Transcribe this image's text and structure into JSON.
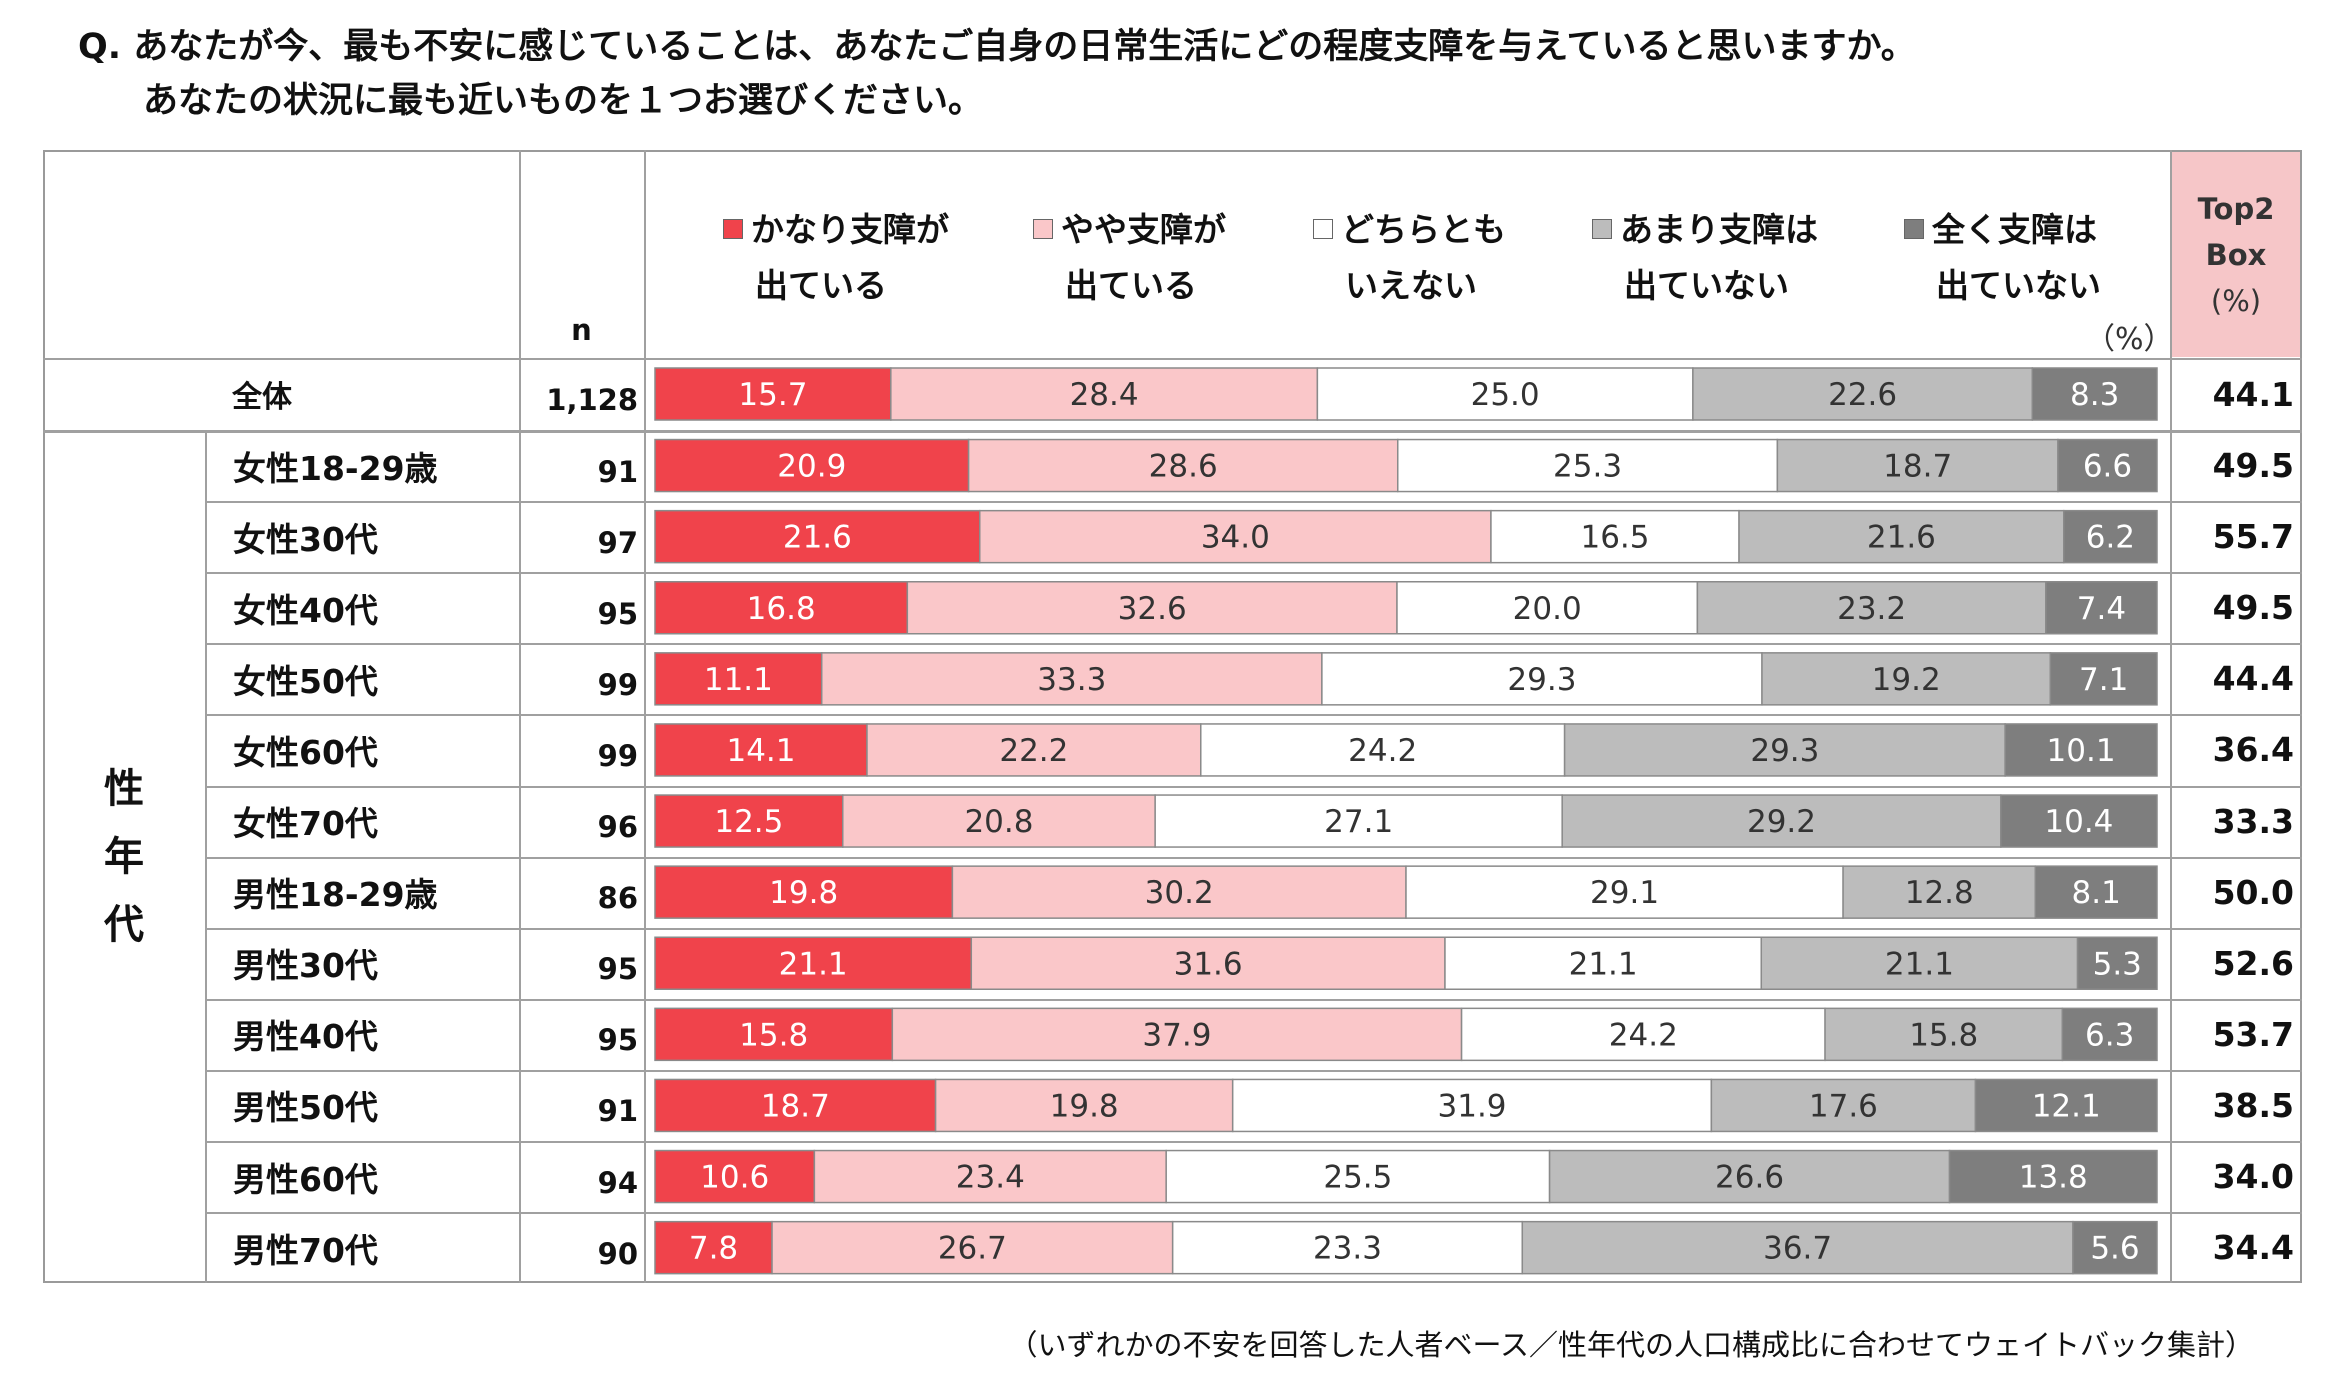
{
  "title": {
    "line1": "Q. あなたが今、最も不安に感じていることは、あなたご自身の日常生活にどの程度支障を与えていると思いますか。",
    "line2": "あなたの状況に最も近いものを１つお選びください。"
  },
  "header": {
    "n_label": "n",
    "top2_line1": "Top2",
    "top2_line2": "Box",
    "top2_line3": "(%)",
    "pct_unit": "（%）",
    "group_label": [
      "性",
      "年",
      "代"
    ]
  },
  "colors": {
    "c1": "#f0434b",
    "c2": "#fac7c9",
    "c3": "#ffffff",
    "c4": "#bcbcbc",
    "c5": "#7e7e7e",
    "top2_bg": "#f6c6c8",
    "grid": "#a0a0a0"
  },
  "footnote": "（いずれかの不安を回答した人者ベース／性年代の人口構成比に合わせてウェイトバック集計）",
  "chart_data": {
    "type": "bar",
    "orientation": "horizontal-stacked-100",
    "unit": "%",
    "series": [
      {
        "name": "かなり支障が出ている",
        "line1": "かなり支障が",
        "line2": "出ている"
      },
      {
        "name": "やや支障が出ている",
        "line1": "やや支障が",
        "line2": "出ている"
      },
      {
        "name": "どちらともいえない",
        "line1": "どちらとも",
        "line2": "いえない"
      },
      {
        "name": "あまり支障は出ていない",
        "line1": "あまり支障は",
        "line2": "出ていない"
      },
      {
        "name": "全く支障は出ていない",
        "line1": "全く支障は",
        "line2": "出ていない"
      }
    ],
    "rows": [
      {
        "label": "全体",
        "n": "1,128",
        "values": [
          "15.7",
          "28.4",
          "25.0",
          "22.6",
          "8.3"
        ],
        "top2": "44.1"
      },
      {
        "label": "女性18-29歳",
        "n": "91",
        "values": [
          "20.9",
          "28.6",
          "25.3",
          "18.7",
          "6.6"
        ],
        "top2": "49.5"
      },
      {
        "label": "女性30代",
        "n": "97",
        "values": [
          "21.6",
          "34.0",
          "16.5",
          "21.6",
          "6.2"
        ],
        "top2": "55.7"
      },
      {
        "label": "女性40代",
        "n": "95",
        "values": [
          "16.8",
          "32.6",
          "20.0",
          "23.2",
          "7.4"
        ],
        "top2": "49.5"
      },
      {
        "label": "女性50代",
        "n": "99",
        "values": [
          "11.1",
          "33.3",
          "29.3",
          "19.2",
          "7.1"
        ],
        "top2": "44.4"
      },
      {
        "label": "女性60代",
        "n": "99",
        "values": [
          "14.1",
          "22.2",
          "24.2",
          "29.3",
          "10.1"
        ],
        "top2": "36.4"
      },
      {
        "label": "女性70代",
        "n": "96",
        "values": [
          "12.5",
          "20.8",
          "27.1",
          "29.2",
          "10.4"
        ],
        "top2": "33.3"
      },
      {
        "label": "男性18-29歳",
        "n": "86",
        "values": [
          "19.8",
          "30.2",
          "29.1",
          "12.8",
          "8.1"
        ],
        "top2": "50.0"
      },
      {
        "label": "男性30代",
        "n": "95",
        "values": [
          "21.1",
          "31.6",
          "21.1",
          "21.1",
          "5.3"
        ],
        "top2": "52.6"
      },
      {
        "label": "男性40代",
        "n": "95",
        "values": [
          "15.8",
          "37.9",
          "24.2",
          "15.8",
          "6.3"
        ],
        "top2": "53.7"
      },
      {
        "label": "男性50代",
        "n": "91",
        "values": [
          "18.7",
          "19.8",
          "31.9",
          "17.6",
          "12.1"
        ],
        "top2": "38.5"
      },
      {
        "label": "男性60代",
        "n": "94",
        "values": [
          "10.6",
          "23.4",
          "25.5",
          "26.6",
          "13.8"
        ],
        "top2": "34.0"
      },
      {
        "label": "男性70代",
        "n": "90",
        "values": [
          "7.8",
          "26.7",
          "23.3",
          "36.7",
          "5.6"
        ],
        "top2": "34.4"
      }
    ]
  }
}
